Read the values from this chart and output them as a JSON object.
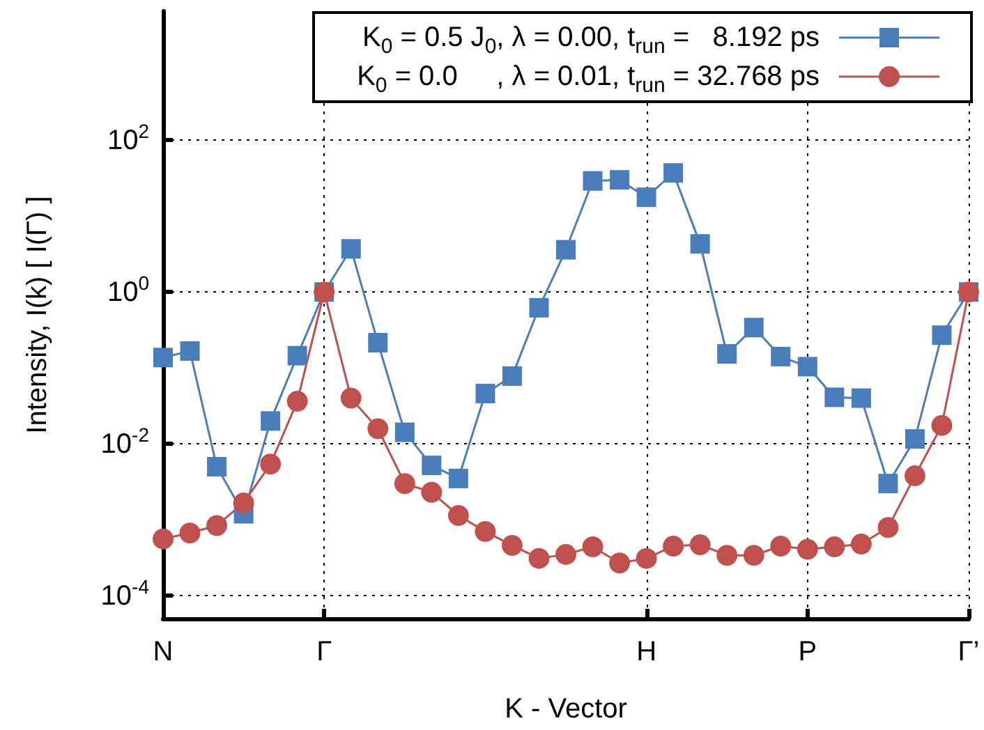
{
  "chart_data": {
    "type": "line",
    "xlabel": "K - Vector",
    "ylabel": "Intensity, I(k) [ I(Γ) ]",
    "categories": [
      "N",
      null,
      null,
      null,
      null,
      null,
      "Γ",
      null,
      null,
      null,
      null,
      null,
      null,
      null,
      null,
      null,
      null,
      null,
      "H",
      null,
      null,
      null,
      null,
      null,
      "P",
      null,
      null,
      null,
      null,
      null,
      "Γ’"
    ],
    "series": [
      {
        "name": "K$_{0}$ = 0.5 J$_{0}$, λ = 0.00, t$_{run}$ =   8.192 ps",
        "color": "#4a7ebb",
        "marker": "square",
        "values": [
          0.137,
          0.167,
          0.005,
          0.0012,
          0.02,
          0.145,
          1,
          3.7,
          0.215,
          0.0142,
          0.0052,
          0.0035,
          0.046,
          0.078,
          0.62,
          3.6,
          29,
          30,
          17.7,
          37,
          4.3,
          0.153,
          0.34,
          0.141,
          0.104,
          0.041,
          0.04,
          0.003,
          0.0116,
          0.27,
          1
        ]
      },
      {
        "name": "K$_{0}$ = 0.0     , λ = 0.01, t$_{run}$ = 32.768 ps",
        "color": "#c0504d",
        "marker": "circle",
        "values": [
          0.00056,
          0.00067,
          0.00084,
          0.00167,
          0.0054,
          0.0365,
          1,
          0.04,
          0.0158,
          0.003,
          0.0023,
          0.00114,
          0.0007,
          0.00046,
          0.00031,
          0.00035,
          0.00044,
          0.00027,
          0.00031,
          0.00045,
          0.00047,
          0.00034,
          0.00034,
          0.00045,
          0.00041,
          0.00044,
          0.00048,
          0.00079,
          0.0038,
          0.0175,
          1
        ]
      }
    ],
    "ylim": [
      5e-05,
      5000
    ],
    "yticks": [
      {
        "value": 0.0001,
        "label": "10$^{-4}$"
      },
      {
        "value": 0.01,
        "label": "10$^{-2}$"
      },
      {
        "value": 1,
        "label": "10$^{0}$"
      },
      {
        "value": 100,
        "label": "10$^{2}$"
      }
    ],
    "log": "y",
    "grid": true,
    "legend": "top right",
    "line_style": "solid"
  }
}
